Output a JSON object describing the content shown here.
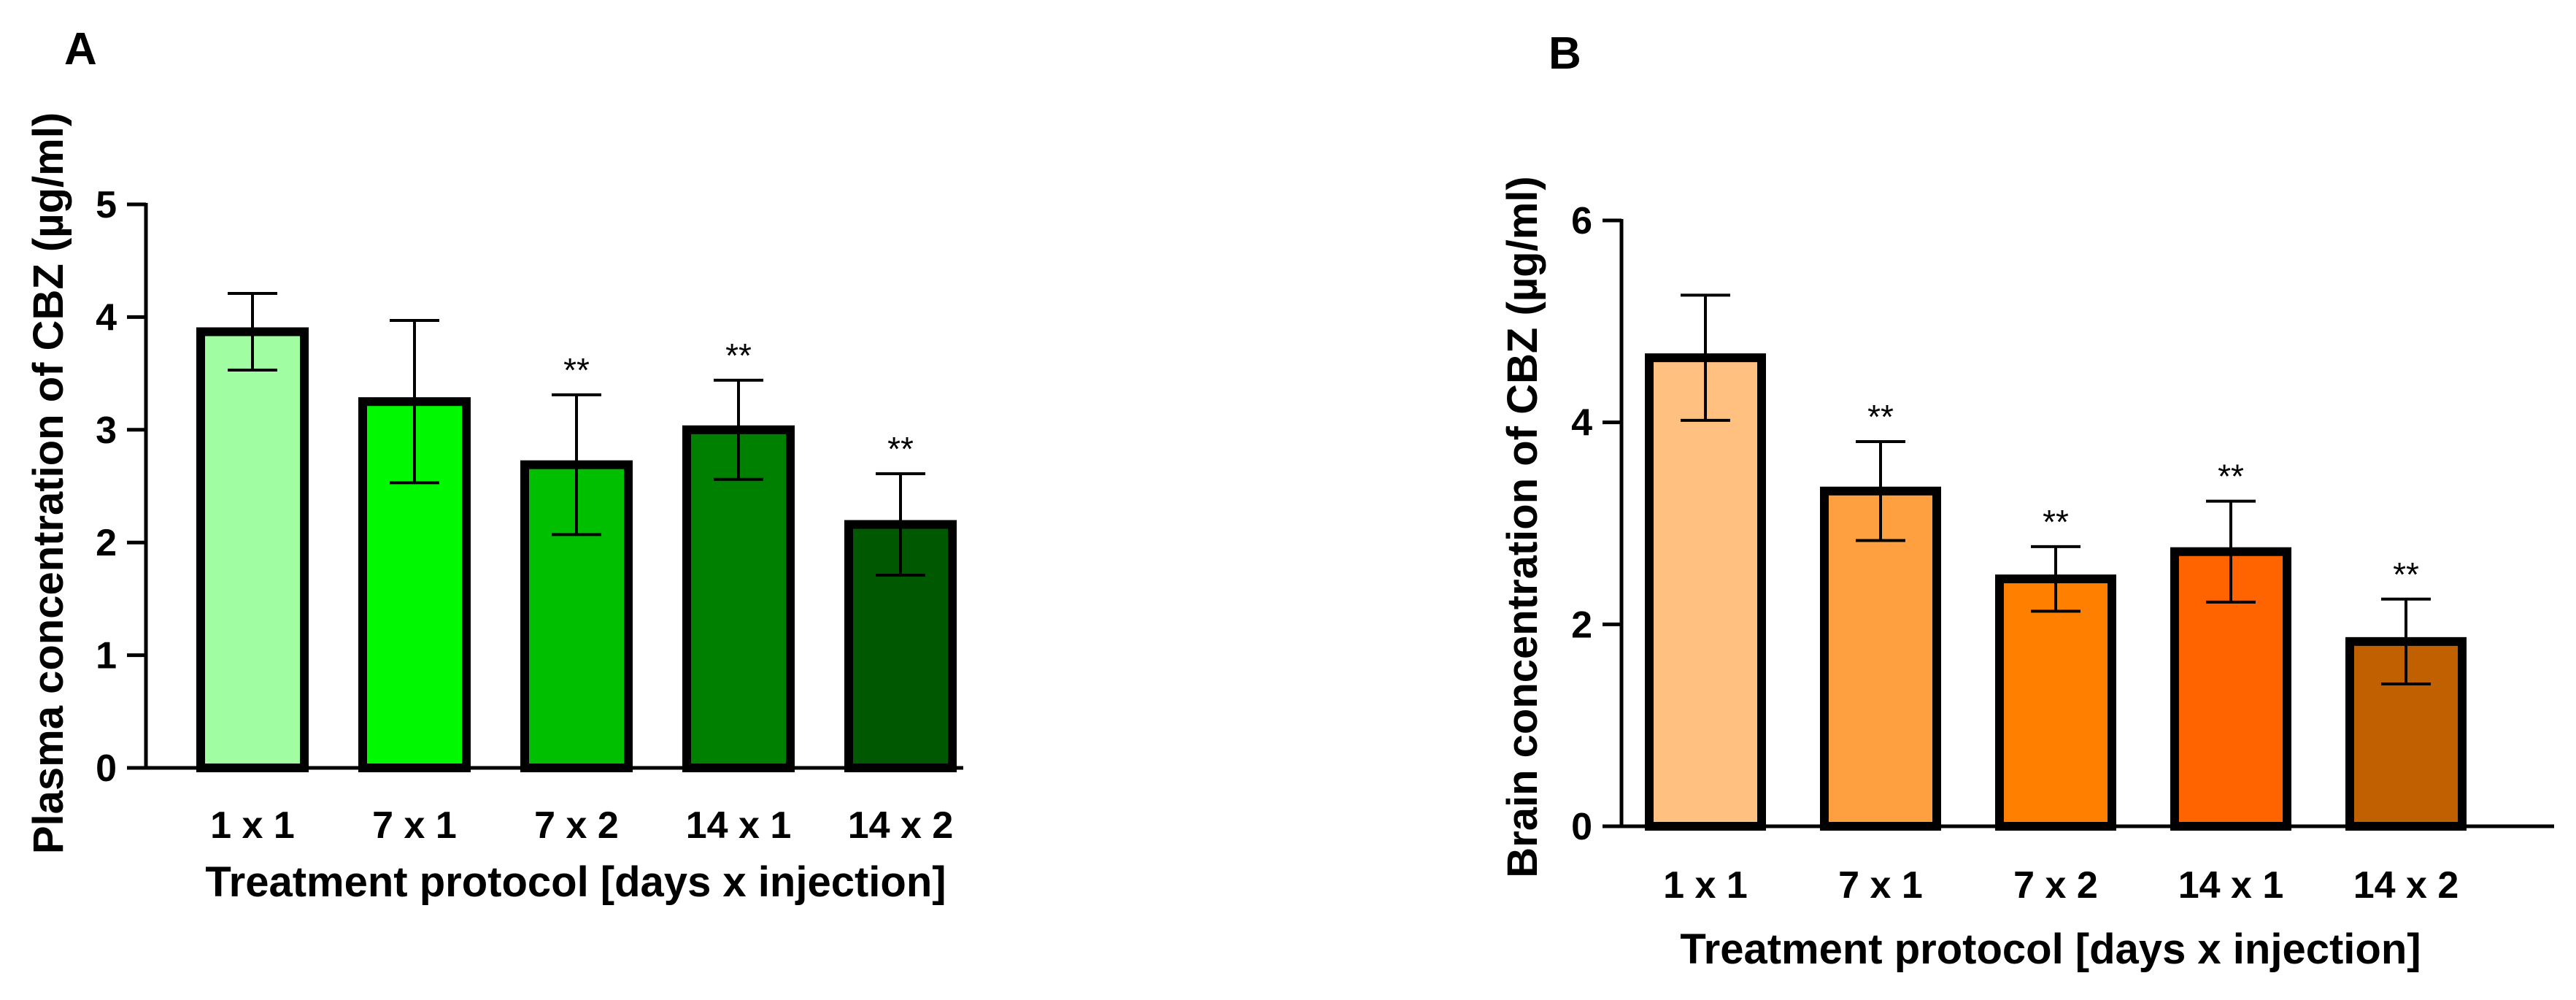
{
  "chart_data": [
    {
      "panel": "A",
      "type": "bar",
      "categories": [
        "1 x 1",
        "7 x 1",
        "7 x 2",
        "14 x 1",
        "14 x 2"
      ],
      "values": [
        3.87,
        3.25,
        2.69,
        3.0,
        2.16
      ],
      "error": [
        0.34,
        0.72,
        0.62,
        0.44,
        0.45
      ],
      "significance": [
        "",
        "",
        "**",
        "**",
        "**"
      ],
      "colors": [
        "#a1fda1",
        "#00f800",
        "#00bf00",
        "#008000",
        "#005900"
      ],
      "xlabel": "Treatment protocol [days x injection]",
      "ylabel": "Plasma concentration of CBZ (µg/ml)",
      "ylim": [
        0,
        5
      ],
      "yticks": [
        0,
        1,
        2,
        3,
        4,
        5
      ],
      "ytick_labels": [
        "0",
        "1",
        "2",
        "3",
        "4",
        "5"
      ]
    },
    {
      "panel": "B",
      "type": "bar",
      "categories": [
        "1 x 1",
        "7 x 1",
        "7 x 2",
        "14 x 1",
        "14 x 2"
      ],
      "values": [
        4.64,
        3.32,
        2.45,
        2.72,
        1.83
      ],
      "error": [
        0.62,
        0.49,
        0.32,
        0.5,
        0.42
      ],
      "significance": [
        "",
        "**",
        "**",
        "**",
        "**"
      ],
      "colors": [
        "#ffc080",
        "#ffa040",
        "#ff8000",
        "#ff6400",
        "#c06000"
      ],
      "xlabel": "Treatment protocol [days x injection]",
      "ylabel": "Brain concentration of CBZ (µg/ml)",
      "ylim": [
        0,
        6
      ],
      "yticks": [
        0,
        2,
        4,
        6
      ],
      "ytick_labels": [
        "0",
        "2",
        "4",
        "6"
      ]
    }
  ]
}
